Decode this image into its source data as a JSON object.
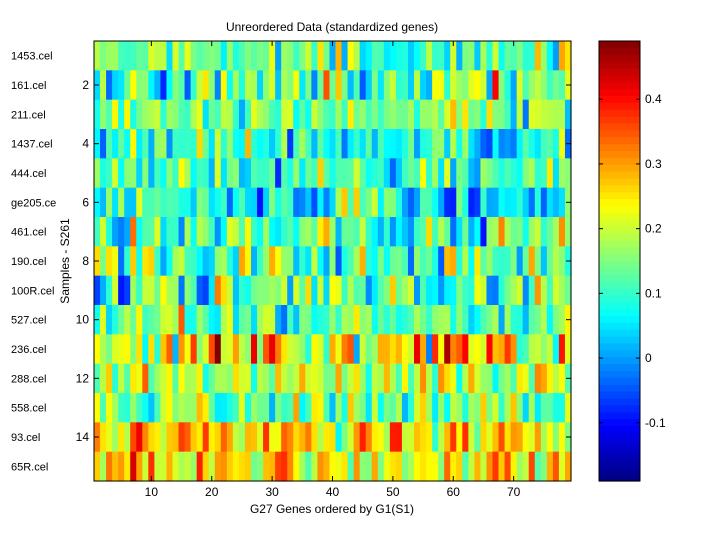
{
  "chart_data": {
    "type": "heatmap",
    "title": "Unreordered Data (standardized genes)",
    "xlabel": "G27 Genes ordered by G1(S1)",
    "ylabel": "Samples - S261",
    "x_range": [
      1,
      79
    ],
    "y_range": [
      1,
      15
    ],
    "x_ticks": [
      10,
      20,
      30,
      40,
      50,
      60,
      70
    ],
    "y_ticks": [
      2,
      4,
      6,
      8,
      10,
      12,
      14
    ],
    "row_labels": [
      "1453.cel",
      "161.cel",
      "211.cel",
      "1437.cel",
      "444.cel",
      "ge205.ce",
      "461.cel",
      "190.cel",
      "100R.cel",
      "527.cel",
      "236.cel",
      "288.cel",
      "558.cel",
      "93.cel",
      "65R.cel"
    ],
    "colorbar": {
      "min": -0.19,
      "max": 0.49,
      "ticks": [
        0.4,
        0.3,
        0.2,
        0.1,
        0,
        -0.1
      ],
      "tick_labels": [
        "0.4",
        "0.3",
        "0.2",
        "0.1",
        "0",
        "-0.1"
      ]
    },
    "row_means": [
      0.14,
      0.13,
      0.14,
      0.09,
      0.1,
      0.06,
      0.12,
      0.13,
      0.12,
      0.12,
      0.24,
      0.2,
      0.14,
      0.26,
      0.24
    ],
    "row_spread": [
      0.07,
      0.09,
      0.06,
      0.07,
      0.07,
      0.08,
      0.08,
      0.08,
      0.09,
      0.07,
      0.1,
      0.06,
      0.07,
      0.08,
      0.08
    ],
    "seed": 27261
  }
}
